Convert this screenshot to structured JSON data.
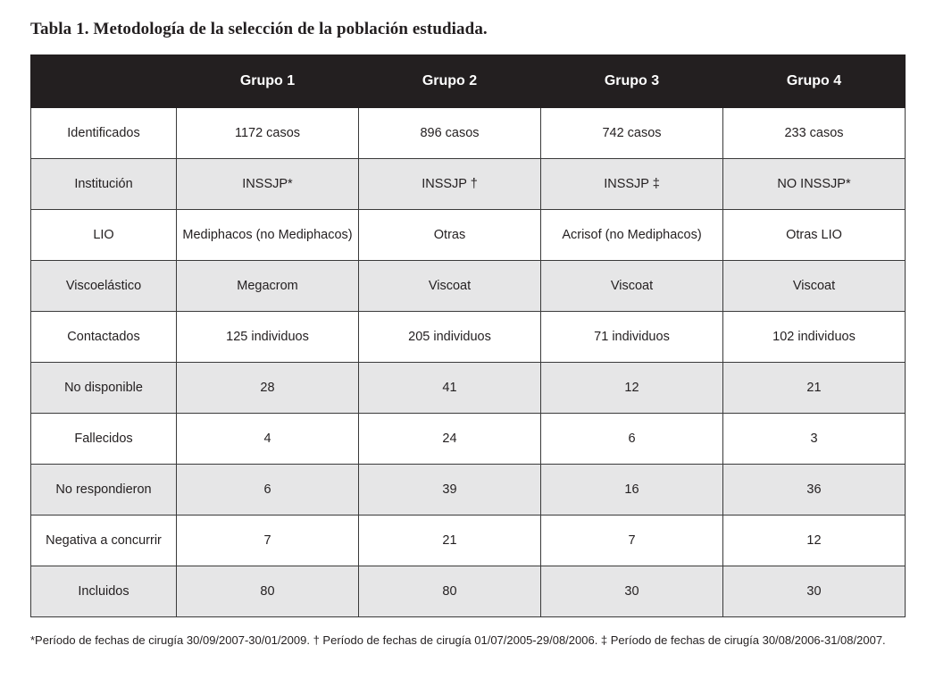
{
  "title": "Tabla 1. Metodología de la selección de la población estudiada.",
  "table": {
    "corner": "",
    "columns": [
      "Grupo 1",
      "Grupo 2",
      "Grupo 3",
      "Grupo 4"
    ],
    "rows": [
      {
        "label": "Identificados",
        "values": [
          "1172 casos",
          "896 casos",
          "742 casos",
          "233 casos"
        ]
      },
      {
        "label": "Institución",
        "values": [
          "INSSJP*",
          "INSSJP †",
          "INSSJP ‡",
          "NO INSSJP*"
        ]
      },
      {
        "label": "LIO",
        "values": [
          "Mediphacos (no Mediphacos)",
          "Otras",
          "Acrisof (no Mediphacos)",
          "Otras LIO"
        ]
      },
      {
        "label": "Viscoelástico",
        "values": [
          "Megacrom",
          "Viscoat",
          "Viscoat",
          "Viscoat"
        ]
      },
      {
        "label": "Contactados",
        "values": [
          "125 individuos",
          "205 individuos",
          "71 individuos",
          "102 individuos"
        ]
      },
      {
        "label": "No disponible",
        "values": [
          "28",
          "41",
          "12",
          "21"
        ]
      },
      {
        "label": "Fallecidos",
        "values": [
          "4",
          "24",
          "6",
          "3"
        ]
      },
      {
        "label": "No respondieron",
        "values": [
          "6",
          "39",
          "16",
          "36"
        ]
      },
      {
        "label": "Negativa a concurrir",
        "values": [
          "7",
          "21",
          "7",
          "12"
        ]
      },
      {
        "label": "Incluidos",
        "values": [
          "80",
          "80",
          "30",
          "30"
        ]
      }
    ]
  },
  "footnote": "*Período de fechas de cirugía 30/09/2007-30/01/2009.  † Período de fechas de cirugía 01/07/2005-29/08/2006.  ‡ Período de fechas de cirugía 30/08/2006-31/08/2007.",
  "colors": {
    "header_bg": "#231f20",
    "header_text": "#ffffff",
    "shaded_row": "#e6e6e7",
    "text": "#231f20"
  }
}
